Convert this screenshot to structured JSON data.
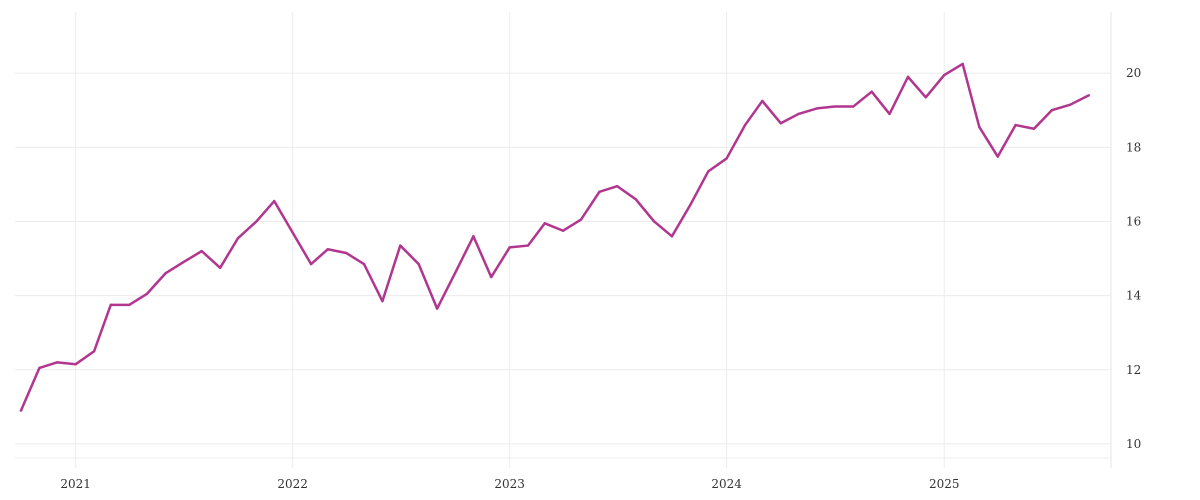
{
  "chart_data": {
    "type": "line",
    "title": "",
    "xlabel": "",
    "ylabel": "",
    "x_tick_labels": [
      "2021",
      "2022",
      "2023",
      "2024",
      "2025"
    ],
    "y_ticks": [
      10,
      12,
      14,
      16,
      18,
      20
    ],
    "y_tick_labels": [
      "10",
      "12",
      "14",
      "16",
      "18",
      "20"
    ],
    "ylim": [
      9.35,
      21.65
    ],
    "xlim": [
      "2020-10-01",
      "2025-09-15"
    ],
    "y_axis_position": "right",
    "grid": true,
    "legend": "none",
    "series": [
      {
        "color": "#b1368f",
        "x": [
          "2020-10-01",
          "2020-11-01",
          "2020-12-01",
          "2021-01-01",
          "2021-02-01",
          "2021-03-01",
          "2021-04-01",
          "2021-05-01",
          "2021-06-01",
          "2021-07-01",
          "2021-08-01",
          "2021-09-01",
          "2021-10-01",
          "2021-11-01",
          "2021-12-01",
          "2022-01-01",
          "2022-02-01",
          "2022-03-01",
          "2022-04-01",
          "2022-05-01",
          "2022-06-01",
          "2022-07-01",
          "2022-08-01",
          "2022-09-01",
          "2022-10-01",
          "2022-11-01",
          "2022-12-01",
          "2023-01-01",
          "2023-02-01",
          "2023-03-01",
          "2023-04-01",
          "2023-05-01",
          "2023-06-01",
          "2023-07-01",
          "2023-08-01",
          "2023-09-01",
          "2023-10-01",
          "2023-11-01",
          "2023-12-01",
          "2024-01-01",
          "2024-02-01",
          "2024-03-01",
          "2024-04-01",
          "2024-05-01",
          "2024-06-01",
          "2024-07-01",
          "2024-08-01",
          "2024-09-01",
          "2024-10-01",
          "2024-11-01",
          "2024-12-01",
          "2025-01-01",
          "2025-02-01",
          "2025-03-01",
          "2025-04-01",
          "2025-05-01",
          "2025-06-01",
          "2025-07-01",
          "2025-08-01",
          "2025-09-01"
        ],
        "y": [
          10.9,
          12.05,
          12.2,
          12.15,
          12.5,
          13.75,
          13.75,
          14.05,
          14.6,
          14.9,
          15.2,
          14.75,
          15.55,
          16.0,
          16.55,
          15.7,
          14.85,
          15.25,
          15.15,
          14.85,
          13.85,
          15.35,
          14.85,
          13.65,
          14.6,
          15.6,
          14.5,
          15.3,
          15.35,
          15.95,
          15.75,
          16.05,
          16.8,
          16.95,
          16.6,
          16.0,
          15.6,
          16.45,
          17.35,
          17.7,
          18.6,
          19.25,
          18.65,
          18.9,
          19.05,
          19.1,
          19.1,
          19.5,
          18.9,
          19.9,
          19.35,
          19.95,
          20.25,
          18.55,
          17.75,
          18.6,
          18.5,
          19.0,
          19.15,
          19.4
        ]
      }
    ]
  }
}
